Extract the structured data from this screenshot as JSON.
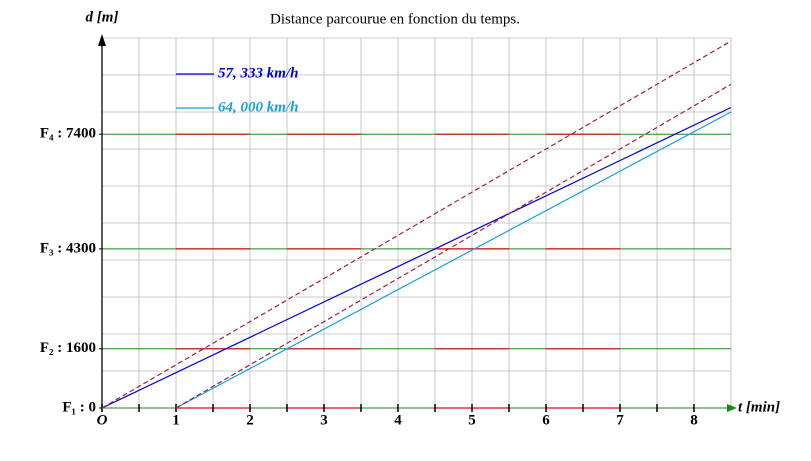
{
  "chart_data": {
    "type": "line",
    "title": "Distance parcourue en fonction du temps.",
    "x_label": "t [min]",
    "y_label": "d [m]",
    "xlim": [
      0,
      8.5
    ],
    "ylim": [
      0,
      10000
    ],
    "xticks": [
      {
        "value": 0,
        "label": "O"
      },
      1,
      2,
      3,
      4,
      5,
      6,
      7,
      8
    ],
    "xminor_ticks": [
      0.5,
      1.5,
      2.5,
      3.5,
      4.5,
      5.5,
      6.5,
      7.5
    ],
    "yticks": [
      {
        "value": 0,
        "label": "F₁ : 0"
      },
      {
        "value": 1600,
        "label": "F₂ : 1600"
      },
      {
        "value": 4300,
        "label": "F₃ : 4300"
      },
      {
        "value": 7400,
        "label": "F₄ : 7400"
      }
    ],
    "grid": true,
    "xgrid_step": 0.5,
    "ygrid_step": 1000,
    "signals": [
      {
        "y": 0,
        "red": [
          [
            1,
            2
          ],
          [
            2.5,
            3.5
          ],
          [
            4.5,
            5.5
          ],
          [
            6,
            7
          ]
        ]
      },
      {
        "y": 1600,
        "red": [
          [
            1,
            2
          ],
          [
            2.5,
            3.5
          ],
          [
            4.5,
            5.5
          ],
          [
            6,
            7
          ]
        ]
      },
      {
        "y": 4300,
        "red": [
          [
            1,
            2
          ],
          [
            2.5,
            3.5
          ],
          [
            4.5,
            5.5
          ],
          [
            6,
            7
          ]
        ]
      },
      {
        "y": 7400,
        "red": [
          [
            1,
            2
          ],
          [
            2.5,
            3.5
          ],
          [
            4.5,
            5.5
          ],
          [
            6,
            7
          ]
        ]
      }
    ],
    "series": [
      {
        "name": "57, 333 km/h",
        "color": "#0000dd",
        "x": [
          0,
          8.5
        ],
        "values": [
          0,
          8122
        ]
      },
      {
        "name": "64, 000 km/h",
        "color": "#1aa0e0",
        "x": [
          1,
          8.5
        ],
        "values": [
          0,
          8000
        ]
      },
      {
        "color": "#a0204a",
        "dashed": true,
        "x": [
          0,
          8.5
        ],
        "values": [
          0,
          9917
        ]
      },
      {
        "color": "#a0204a",
        "dashed": true,
        "x": [
          1,
          8.5
        ],
        "values": [
          0,
          8750
        ]
      }
    ]
  }
}
